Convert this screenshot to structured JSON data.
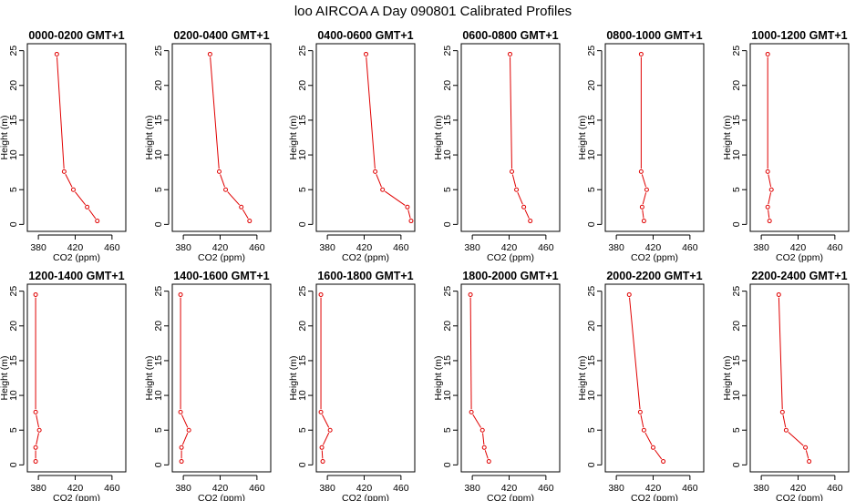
{
  "title": "loo AIRCOA A  Day 090801  Calibrated Profiles",
  "chart_data": {
    "type": "line",
    "layout": {
      "rows": 2,
      "cols": 6
    },
    "xlabel": "CO2 (ppm)",
    "ylabel": "Height (m)",
    "xlim": [
      368,
      475
    ],
    "ylim": [
      -1,
      26
    ],
    "xticks": [
      380,
      420,
      460
    ],
    "yticks": [
      0,
      5,
      10,
      15,
      20,
      25
    ],
    "line_color": "#e00000",
    "heights": [
      24.5,
      7.6,
      5.0,
      2.5,
      0.5
    ],
    "panels": [
      {
        "title": "0000-0200 GMT+1",
        "x": [
          400,
          408,
          418,
          433,
          444
        ]
      },
      {
        "title": "0200-0400 GMT+1",
        "x": [
          409,
          419,
          426,
          443,
          452
        ]
      },
      {
        "title": "0400-0600 GMT+1",
        "x": [
          422,
          432,
          440,
          467,
          471
        ]
      },
      {
        "title": "0600-0800 GMT+1",
        "x": [
          421,
          423,
          428,
          436,
          443
        ]
      },
      {
        "title": "0800-1000 GMT+1",
        "x": [
          407,
          407,
          413,
          408,
          410
        ]
      },
      {
        "title": "1000-1200 GMT+1",
        "x": [
          387,
          387,
          391,
          387,
          389
        ]
      },
      {
        "title": "1200-1400 GMT+1",
        "x": [
          377,
          377,
          381,
          377,
          377
        ]
      },
      {
        "title": "1400-1600 GMT+1",
        "x": [
          377,
          377,
          386,
          378,
          378
        ]
      },
      {
        "title": "1600-1800 GMT+1",
        "x": [
          373,
          373,
          383,
          374,
          375
        ]
      },
      {
        "title": "1800-2000 GMT+1",
        "x": [
          378,
          379,
          391,
          393,
          398
        ]
      },
      {
        "title": "2000-2200 GMT+1",
        "x": [
          394,
          406,
          410,
          420,
          431
        ]
      },
      {
        "title": "2200-2400 GMT+1",
        "x": [
          399,
          403,
          407,
          428,
          432
        ]
      }
    ]
  }
}
